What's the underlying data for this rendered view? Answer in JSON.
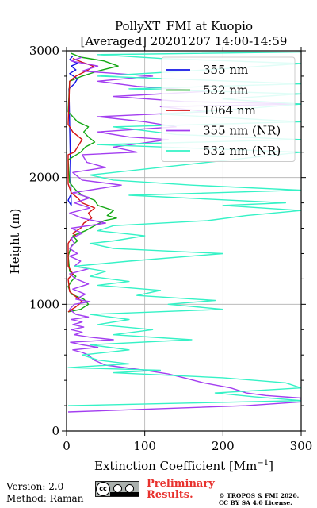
{
  "chart_data": {
    "type": "line",
    "title": "PollyXT_FMI at Kuopio",
    "subtitle": "[Averaged] 20201207 14:00-14:59",
    "xlabel": "Extinction Coefficient [Mm",
    "xlabel_sup": "−1",
    "xlabel_end": "]",
    "ylabel": "Height (m)",
    "xlim": [
      0,
      300
    ],
    "ylim": [
      0,
      3000
    ],
    "xticks": [
      0,
      100,
      200,
      300
    ],
    "yticks": [
      0,
      1000,
      2000,
      3000
    ],
    "grid": true,
    "legend_position": "top-right",
    "series": [
      {
        "name": "355 nm",
        "color": "#1414e6",
        "points": [
          [
            5,
            1860
          ],
          [
            2,
            1820
          ],
          [
            6,
            1780
          ],
          [
            3,
            2700
          ],
          [
            10,
            2740
          ],
          [
            14,
            2780
          ],
          [
            4,
            2820
          ],
          [
            12,
            2850
          ],
          [
            6,
            2880
          ],
          [
            14,
            2900
          ],
          [
            4,
            2930
          ],
          [
            8,
            2960
          ]
        ]
      },
      {
        "name": "532 nm",
        "color": "#14a814",
        "points": [
          [
            2,
            940
          ],
          [
            18,
            960
          ],
          [
            28,
            1000
          ],
          [
            22,
            1040
          ],
          [
            6,
            1080
          ],
          [
            2,
            1140
          ],
          [
            6,
            1180
          ],
          [
            12,
            1220
          ],
          [
            4,
            1260
          ],
          [
            2,
            1380
          ],
          [
            6,
            1460
          ],
          [
            14,
            1500
          ],
          [
            8,
            1540
          ],
          [
            24,
            1580
          ],
          [
            36,
            1620
          ],
          [
            48,
            1660
          ],
          [
            64,
            1680
          ],
          [
            52,
            1700
          ],
          [
            60,
            1740
          ],
          [
            40,
            1780
          ],
          [
            36,
            1820
          ],
          [
            20,
            1860
          ],
          [
            12,
            1900
          ],
          [
            4,
            1960
          ],
          [
            2,
            2140
          ],
          [
            18,
            2200
          ],
          [
            24,
            2240
          ],
          [
            36,
            2280
          ],
          [
            28,
            2320
          ],
          [
            22,
            2360
          ],
          [
            28,
            2400
          ],
          [
            14,
            2440
          ],
          [
            8,
            2480
          ],
          [
            2,
            2520
          ],
          [
            4,
            2760
          ],
          [
            20,
            2800
          ],
          [
            40,
            2840
          ],
          [
            66,
            2880
          ],
          [
            48,
            2920
          ],
          [
            18,
            2950
          ],
          [
            6,
            2980
          ]
        ]
      },
      {
        "name": "1064 nm",
        "color": "#d41414",
        "points": [
          [
            2,
            940
          ],
          [
            12,
            980
          ],
          [
            20,
            1020
          ],
          [
            12,
            1060
          ],
          [
            4,
            1100
          ],
          [
            2,
            1200
          ],
          [
            8,
            1240
          ],
          [
            2,
            1300
          ],
          [
            2,
            1480
          ],
          [
            6,
            1520
          ],
          [
            12,
            1540
          ],
          [
            8,
            1560
          ],
          [
            18,
            1600
          ],
          [
            22,
            1640
          ],
          [
            32,
            1680
          ],
          [
            28,
            1720
          ],
          [
            36,
            1760
          ],
          [
            20,
            1800
          ],
          [
            14,
            1840
          ],
          [
            6,
            1880
          ],
          [
            2,
            1950
          ],
          [
            2,
            2180
          ],
          [
            10,
            2200
          ],
          [
            14,
            2240
          ],
          [
            20,
            2300
          ],
          [
            8,
            2360
          ],
          [
            2,
            2420
          ],
          [
            4,
            2760
          ],
          [
            12,
            2800
          ],
          [
            28,
            2850
          ],
          [
            34,
            2880
          ],
          [
            20,
            2910
          ],
          [
            8,
            2940
          ]
        ]
      },
      {
        "name": "355 nm (NR)",
        "color": "#a33ef0",
        "points": [
          [
            2,
            150
          ],
          [
            230,
            200
          ],
          [
            300,
            230
          ],
          [
            300,
            260
          ],
          [
            255,
            280
          ],
          [
            230,
            300
          ],
          [
            210,
            340
          ],
          [
            175,
            380
          ],
          [
            150,
            420
          ],
          [
            130,
            450
          ],
          [
            100,
            480
          ],
          [
            50,
            520
          ],
          [
            35,
            560
          ],
          [
            28,
            600
          ],
          [
            20,
            620
          ],
          [
            8,
            640
          ],
          [
            40,
            660
          ],
          [
            20,
            680
          ],
          [
            5,
            700
          ],
          [
            60,
            720
          ],
          [
            30,
            740
          ],
          [
            10,
            760
          ],
          [
            20,
            780
          ],
          [
            6,
            800
          ],
          [
            22,
            820
          ],
          [
            8,
            840
          ],
          [
            20,
            860
          ],
          [
            6,
            880
          ],
          [
            28,
            900
          ],
          [
            12,
            920
          ],
          [
            4,
            960
          ],
          [
            10,
            1000
          ],
          [
            30,
            1020
          ],
          [
            12,
            1040
          ],
          [
            24,
            1080
          ],
          [
            8,
            1120
          ],
          [
            28,
            1160
          ],
          [
            12,
            1200
          ],
          [
            4,
            1240
          ],
          [
            28,
            1280
          ],
          [
            10,
            1300
          ],
          [
            18,
            1340
          ],
          [
            4,
            1380
          ],
          [
            14,
            1400
          ],
          [
            4,
            1440
          ],
          [
            10,
            1480
          ],
          [
            6,
            1520
          ],
          [
            20,
            1560
          ],
          [
            6,
            1600
          ],
          [
            50,
            1640
          ],
          [
            20,
            1680
          ],
          [
            4,
            1720
          ],
          [
            30,
            1760
          ],
          [
            10,
            1800
          ],
          [
            30,
            1840
          ],
          [
            8,
            1880
          ],
          [
            70,
            1940
          ],
          [
            20,
            1980
          ],
          [
            8,
            2040
          ],
          [
            50,
            2080
          ],
          [
            26,
            2120
          ],
          [
            20,
            2180
          ],
          [
            90,
            2200
          ],
          [
            60,
            2240
          ],
          [
            130,
            2300
          ],
          [
            80,
            2320
          ],
          [
            40,
            2360
          ],
          [
            140,
            2400
          ],
          [
            100,
            2440
          ],
          [
            40,
            2480
          ],
          [
            180,
            2520
          ],
          [
            120,
            2560
          ],
          [
            300,
            2580
          ],
          [
            150,
            2600
          ],
          [
            60,
            2640
          ],
          [
            180,
            2680
          ],
          [
            90,
            2720
          ],
          [
            40,
            2760
          ],
          [
            110,
            2800
          ],
          [
            20,
            2840
          ],
          [
            40,
            2880
          ],
          [
            6,
            2920
          ],
          [
            20,
            2950
          ]
        ]
      },
      {
        "name": "532 nm (NR)",
        "color": "#35f2c6",
        "points": [
          [
            2,
            200
          ],
          [
            300,
            240
          ],
          [
            240,
            270
          ],
          [
            190,
            300
          ],
          [
            300,
            340
          ],
          [
            280,
            380
          ],
          [
            200,
            420
          ],
          [
            60,
            460
          ],
          [
            120,
            480
          ],
          [
            2,
            500
          ],
          [
            80,
            530
          ],
          [
            40,
            560
          ],
          [
            20,
            600
          ],
          [
            80,
            640
          ],
          [
            30,
            680
          ],
          [
            160,
            720
          ],
          [
            60,
            760
          ],
          [
            110,
            800
          ],
          [
            40,
            840
          ],
          [
            80,
            880
          ],
          [
            30,
            920
          ],
          [
            200,
            960
          ],
          [
            130,
            1000
          ],
          [
            190,
            1030
          ],
          [
            90,
            1070
          ],
          [
            120,
            1110
          ],
          [
            40,
            1150
          ],
          [
            80,
            1180
          ],
          [
            30,
            1220
          ],
          [
            50,
            1260
          ],
          [
            10,
            1300
          ],
          [
            80,
            1340
          ],
          [
            200,
            1400
          ],
          [
            60,
            1440
          ],
          [
            30,
            1480
          ],
          [
            60,
            1500
          ],
          [
            100,
            1540
          ],
          [
            40,
            1580
          ],
          [
            60,
            1620
          ],
          [
            180,
            1660
          ],
          [
            230,
            1700
          ],
          [
            300,
            1740
          ],
          [
            200,
            1780
          ],
          [
            280,
            1800
          ],
          [
            80,
            1860
          ],
          [
            300,
            1900
          ],
          [
            160,
            1940
          ],
          [
            60,
            1980
          ],
          [
            30,
            2020
          ],
          [
            300,
            2200
          ],
          [
            40,
            2260
          ],
          [
            300,
            2300
          ],
          [
            140,
            2340
          ],
          [
            60,
            2400
          ],
          [
            300,
            2440
          ],
          [
            120,
            2500
          ],
          [
            220,
            2540
          ],
          [
            300,
            2580
          ],
          [
            200,
            2620
          ],
          [
            300,
            2660
          ],
          [
            80,
            2700
          ],
          [
            300,
            2740
          ],
          [
            40,
            2800
          ],
          [
            180,
            2850
          ],
          [
            300,
            2900
          ],
          [
            120,
            2940
          ],
          [
            40,
            2970
          ],
          [
            300,
            2990
          ]
        ]
      }
    ]
  },
  "footer": {
    "version": "Version: 2.0",
    "method": "Method: Raman",
    "license_badge": "cc",
    "license_badge_detail": "BY   SA",
    "preliminary_line1": "Preliminary",
    "preliminary_line2": "Results.",
    "copyright_line1": "© TROPOS & FMI 2020.",
    "copyright_line2": "CC BY SA 4.0 License."
  }
}
